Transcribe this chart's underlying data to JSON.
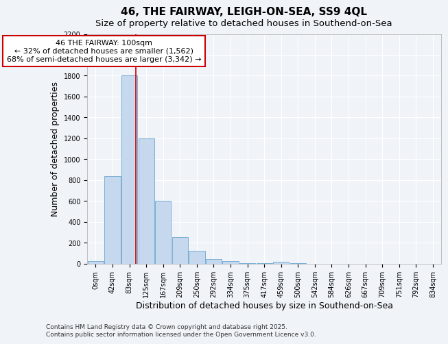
{
  "title": "46, THE FAIRWAY, LEIGH-ON-SEA, SS9 4QL",
  "subtitle": "Size of property relative to detached houses in Southend-on-Sea",
  "xlabel": "Distribution of detached houses by size in Southend-on-Sea",
  "ylabel": "Number of detached properties",
  "footnote1": "Contains HM Land Registry data © Crown copyright and database right 2025.",
  "footnote2": "Contains public sector information licensed under the Open Government Licence v3.0.",
  "bar_labels": [
    "0sqm",
    "42sqm",
    "83sqm",
    "125sqm",
    "167sqm",
    "209sqm",
    "250sqm",
    "292sqm",
    "334sqm",
    "375sqm",
    "417sqm",
    "459sqm",
    "500sqm",
    "542sqm",
    "584sqm",
    "626sqm",
    "667sqm",
    "709sqm",
    "751sqm",
    "792sqm",
    "834sqm"
  ],
  "bar_values": [
    20,
    840,
    1800,
    1200,
    600,
    250,
    120,
    45,
    20,
    5,
    2,
    15,
    5,
    0,
    0,
    0,
    0,
    0,
    0,
    0,
    0
  ],
  "bar_color": "#c5d8ee",
  "bar_edge_color": "#7aafd4",
  "red_line_x": 2.4,
  "annotation_title": "46 THE FAIRWAY: 100sqm",
  "annotation_line1": "← 32% of detached houses are smaller (1,562)",
  "annotation_line2": "68% of semi-detached houses are larger (3,342) →",
  "annotation_box_color": "#ffffff",
  "annotation_box_edge": "#cc0000",
  "red_line_color": "#cc0000",
  "ylim": [
    0,
    2200
  ],
  "yticks": [
    0,
    200,
    400,
    600,
    800,
    1000,
    1200,
    1400,
    1600,
    1800,
    2000,
    2200
  ],
  "background_color": "#f0f4f8",
  "plot_background": "#f0f4f8",
  "title_fontsize": 11,
  "subtitle_fontsize": 9.5,
  "axis_label_fontsize": 9,
  "tick_fontsize": 7,
  "annotation_fontsize": 8,
  "footnote_fontsize": 6.5
}
